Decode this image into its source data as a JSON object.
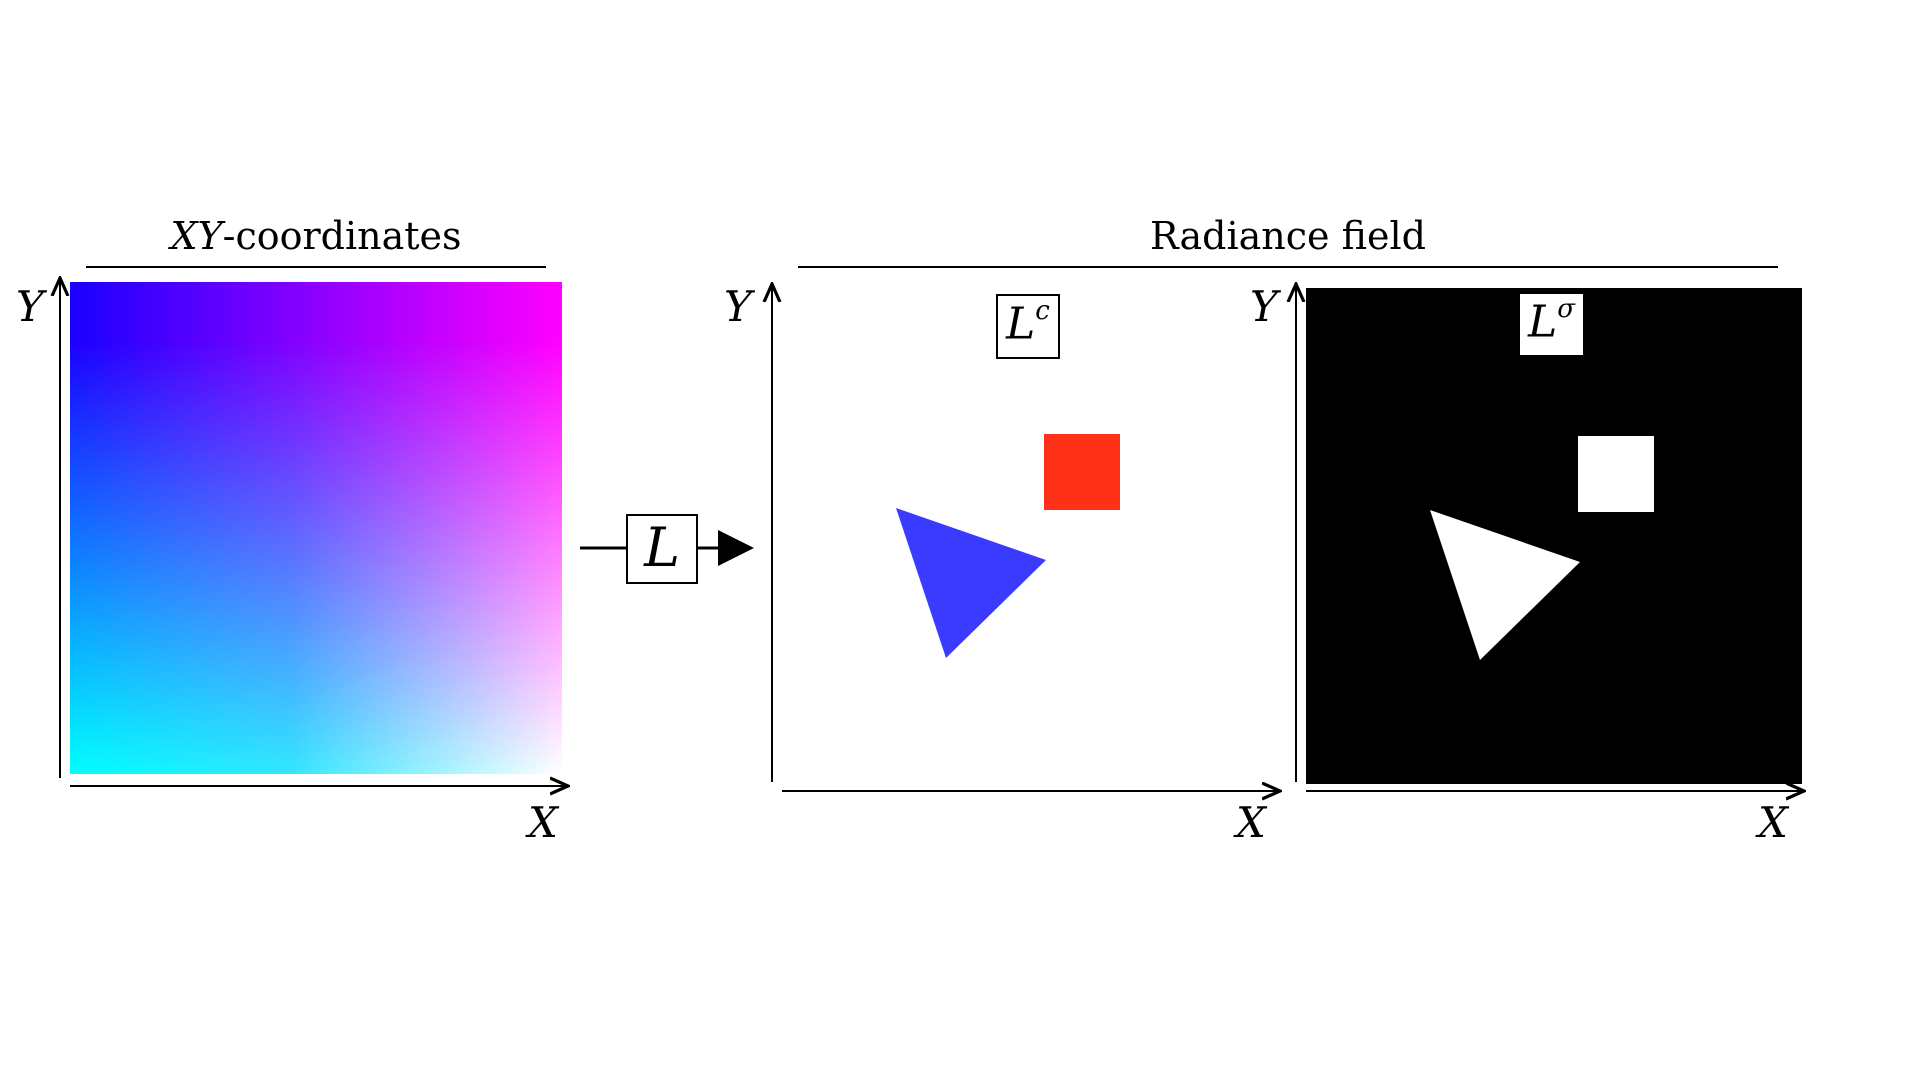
{
  "titles": {
    "left_title_italic": "XY",
    "left_title_rest": "-coordinates",
    "right_title": "Radiance field"
  },
  "operator": {
    "label": "L"
  },
  "panels": {
    "color": {
      "label_base": "L",
      "label_sup": "c"
    },
    "density": {
      "label_base": "L",
      "label_sup": "σ"
    }
  },
  "axes": {
    "x_label": "X",
    "y_label": "Y"
  },
  "colors": {
    "gradient_top_left": "#1a00ff",
    "gradient_top_right": "#ff00ff",
    "gradient_bottom_left": "#00ffff",
    "gradient_bottom_right": "#ffffff",
    "triangle": "#3b3bff",
    "square": "#ff3018",
    "density_background": "#000000",
    "density_shapes": "#ffffff"
  },
  "shapes": [
    "triangle",
    "square"
  ]
}
